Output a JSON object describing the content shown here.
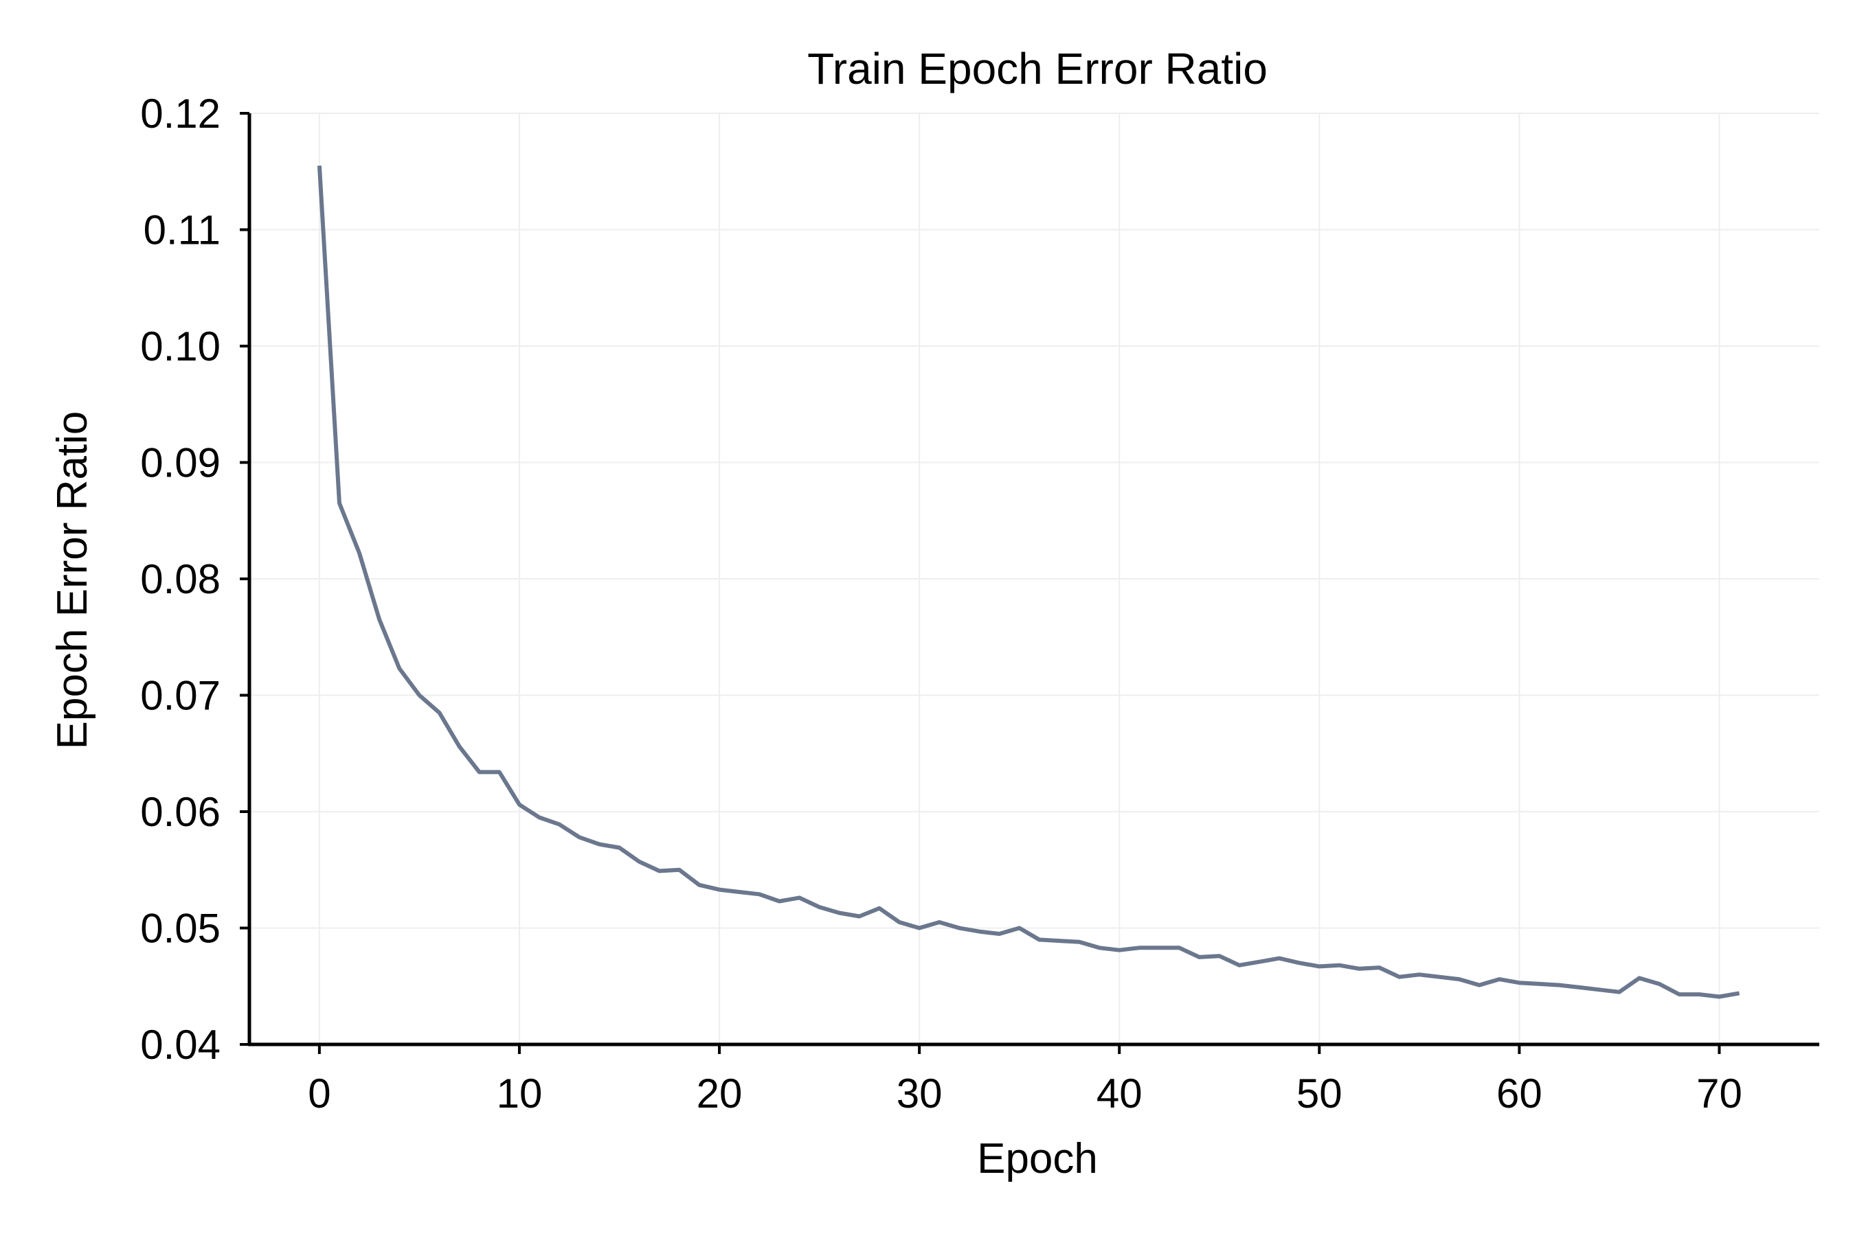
{
  "chart_data": {
    "type": "line",
    "title": "Train Epoch Error Ratio",
    "xlabel": "Epoch",
    "ylabel": "Epoch Error Ratio",
    "xlim": [
      -3.5,
      75.0
    ],
    "ylim": [
      0.04,
      0.12
    ],
    "xticks": [
      0,
      10,
      20,
      30,
      40,
      50,
      60,
      70
    ],
    "xtick_labels": [
      "0",
      "10",
      "20",
      "30",
      "40",
      "50",
      "60",
      "70"
    ],
    "yticks": [
      0.04,
      0.05,
      0.06,
      0.07,
      0.08,
      0.09,
      0.1,
      0.11,
      0.12
    ],
    "ytick_labels": [
      "0.04",
      "0.05",
      "0.06",
      "0.07",
      "0.08",
      "0.09",
      "0.10",
      "0.11",
      "0.12"
    ],
    "grid": true,
    "line_color": "#6b778d",
    "series": [
      {
        "x": [
          0,
          1,
          2,
          3,
          4,
          5,
          6,
          7,
          8,
          9,
          10,
          11,
          12,
          13,
          14,
          15,
          16,
          17,
          18,
          19,
          20,
          21,
          22,
          23,
          24,
          25,
          26,
          27,
          28,
          29,
          30,
          31,
          32,
          33,
          34,
          35,
          36,
          37,
          38,
          39,
          40,
          41,
          42,
          43,
          44,
          45,
          46,
          47,
          48,
          49,
          50,
          51,
          52,
          53,
          54,
          55,
          56,
          57,
          58,
          59,
          60,
          61,
          62,
          63,
          64,
          65,
          66,
          67,
          68,
          69,
          70,
          71
        ],
        "values": [
          0.1155,
          0.0865,
          0.0822,
          0.0765,
          0.0723,
          0.07,
          0.0685,
          0.0656,
          0.0634,
          0.0634,
          0.0606,
          0.0595,
          0.0589,
          0.0578,
          0.0572,
          0.0569,
          0.0557,
          0.0549,
          0.055,
          0.0537,
          0.0533,
          0.0531,
          0.0529,
          0.0523,
          0.0526,
          0.0518,
          0.0513,
          0.051,
          0.0517,
          0.0505,
          0.05,
          0.0505,
          0.05,
          0.0497,
          0.0495,
          0.05,
          0.049,
          0.0489,
          0.0488,
          0.0483,
          0.0481,
          0.0483,
          0.0483,
          0.0483,
          0.0475,
          0.0476,
          0.0468,
          0.0471,
          0.0474,
          0.047,
          0.0467,
          0.0468,
          0.0465,
          0.0466,
          0.0458,
          0.046,
          0.0458,
          0.0456,
          0.0451,
          0.0456,
          0.0453,
          0.0452,
          0.0451,
          0.0449,
          0.0447,
          0.0445,
          0.0457,
          0.0452,
          0.0443,
          0.0443,
          0.0441,
          0.0444
        ]
      }
    ]
  }
}
